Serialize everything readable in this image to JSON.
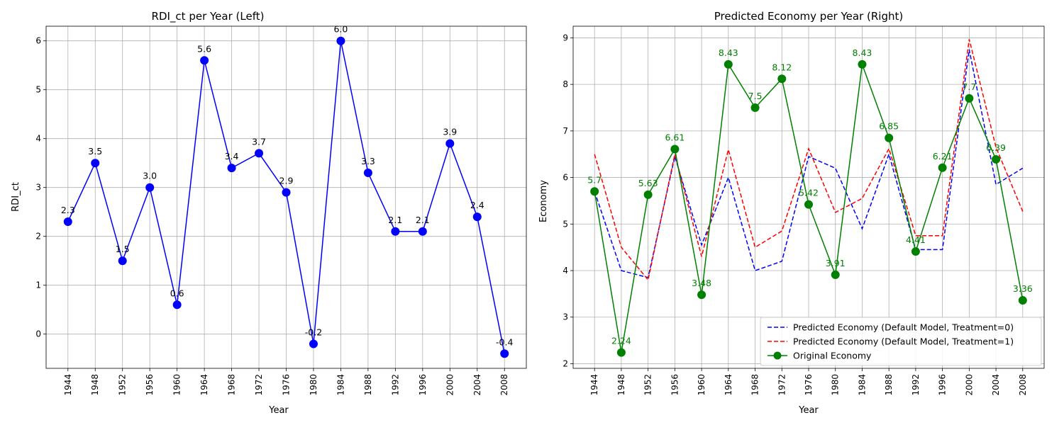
{
  "chart_data": [
    {
      "type": "line",
      "title": "RDI_ct per Year (Left)",
      "xlabel": "Year",
      "ylabel": "RDI_ct",
      "grid": true,
      "ylim": [
        -0.7,
        6.3
      ],
      "yticks": [
        0,
        1,
        2,
        3,
        4,
        5,
        6
      ],
      "x": [
        1944,
        1948,
        1952,
        1956,
        1960,
        1964,
        1968,
        1972,
        1976,
        1980,
        1984,
        1988,
        1992,
        1996,
        2000,
        2004,
        2008
      ],
      "series": [
        {
          "values": [
            2.3,
            3.5,
            1.5,
            3.0,
            0.6,
            5.6,
            3.4,
            3.7,
            2.9,
            -0.2,
            6.0,
            3.3,
            2.1,
            2.1,
            3.9,
            2.4,
            -0.4
          ],
          "labels": [
            "2.3",
            "3.5",
            "1.5",
            "3.0",
            "0.6",
            "5.6",
            "3.4",
            "3.7",
            "2.9",
            "-0.2",
            "6.0",
            "3.3",
            "2.1",
            "2.1",
            "3.9",
            "2.4",
            "-0.4"
          ],
          "color": "#0000ff",
          "style": "solid",
          "marker": "circle"
        }
      ]
    },
    {
      "type": "line",
      "title": "Predicted Economy per Year (Right)",
      "xlabel": "Year",
      "ylabel": "Economy",
      "grid": true,
      "legend": "bottom-right",
      "ylim": [
        1.9,
        9.25
      ],
      "yticks": [
        2,
        3,
        4,
        5,
        6,
        7,
        8,
        9
      ],
      "x": [
        1944,
        1948,
        1952,
        1956,
        1960,
        1964,
        1968,
        1972,
        1976,
        1980,
        1984,
        1988,
        1992,
        1996,
        2000,
        2004,
        2008
      ],
      "series": [
        {
          "name": "Predicted Economy (Default Model, Treatment=0)",
          "values": [
            5.7,
            4.0,
            3.85,
            6.45,
            4.55,
            6.0,
            4.0,
            4.2,
            6.45,
            6.2,
            4.9,
            6.5,
            4.45,
            4.45,
            8.75,
            5.85,
            6.2
          ],
          "color": "#0000ff",
          "style": "dashed"
        },
        {
          "name": "Predicted Economy (Default Model, Treatment=1)",
          "values": [
            6.5,
            4.5,
            3.8,
            6.5,
            4.3,
            6.6,
            4.5,
            4.85,
            6.62,
            5.25,
            5.55,
            6.62,
            4.75,
            4.75,
            8.97,
            6.65,
            5.27
          ],
          "color": "#ff0000",
          "style": "dashed"
        },
        {
          "name": "Original Economy",
          "values": [
            5.7,
            2.24,
            5.63,
            6.61,
            3.48,
            8.43,
            7.5,
            8.12,
            5.42,
            3.91,
            8.43,
            6.85,
            4.41,
            6.21,
            7.7,
            6.39,
            3.36
          ],
          "labels": [
            "5.7",
            "2.24",
            "5.63",
            "6.61",
            "3.48",
            "8.43",
            "7.5",
            "8.12",
            "5.42",
            "3.91",
            "8.43",
            "6.85",
            "4.41",
            "6.21",
            "7.7",
            "6.39",
            "3.36"
          ],
          "color": "#008000",
          "style": "solid",
          "marker": "circle"
        }
      ]
    }
  ]
}
